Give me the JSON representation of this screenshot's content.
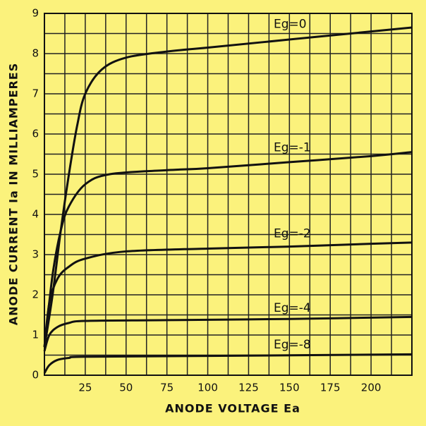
{
  "chart_data": {
    "type": "line",
    "x_label": "ANODE VOLTAGE Ea",
    "y_label": "ANODE CURRENT Ia IN MILLIAMPERES",
    "xlim": [
      0,
      225
    ],
    "ylim": [
      0,
      9
    ],
    "xticks": [
      25,
      50,
      75,
      100,
      125,
      150,
      175,
      200
    ],
    "yticks": [
      0,
      1,
      2,
      3,
      4,
      5,
      6,
      7,
      8,
      9
    ],
    "x_minor_ticks": [
      12.5,
      37.5,
      62.5,
      87.5,
      112.5,
      137.5,
      162.5,
      187.5,
      212.5
    ],
    "y_minor_ticks": [
      0.5,
      1.5,
      2.5,
      3.5,
      4.5,
      5.5,
      6.5,
      7.5,
      8.5
    ],
    "grid": true,
    "color": "#111111",
    "series": [
      {
        "name": "Eg=0",
        "x": [
          0,
          5,
          10,
          15,
          20,
          25,
          35,
          50,
          75,
          100,
          150,
          200,
          225
        ],
        "values": [
          0.7,
          2,
          3.6,
          5,
          6.2,
          7,
          7.6,
          7.9,
          8.05,
          8.15,
          8.35,
          8.55,
          8.65
        ]
      },
      {
        "name": "Eg=-1",
        "x": [
          0,
          5,
          10,
          15,
          25,
          40,
          75,
          100,
          150,
          200,
          225
        ],
        "values": [
          0.7,
          2.5,
          3.6,
          4.2,
          4.75,
          5.0,
          5.1,
          5.15,
          5.3,
          5.45,
          5.55
        ]
      },
      {
        "name": "Eg=-2",
        "x": [
          0,
          3,
          8,
          15,
          25,
          50,
          100,
          150,
          200,
          225
        ],
        "values": [
          0.7,
          1.8,
          2.4,
          2.7,
          2.9,
          3.08,
          3.15,
          3.2,
          3.27,
          3.3
        ]
      },
      {
        "name": "Eg=-4",
        "x": [
          0,
          3,
          8,
          15,
          25,
          75,
          150,
          225
        ],
        "values": [
          0.6,
          1.0,
          1.2,
          1.3,
          1.35,
          1.37,
          1.4,
          1.45
        ]
      },
      {
        "name": "Eg=-8",
        "x": [
          0,
          3,
          8,
          15,
          25,
          100,
          225
        ],
        "values": [
          0.05,
          0.25,
          0.38,
          0.43,
          0.46,
          0.48,
          0.52
        ]
      }
    ]
  }
}
